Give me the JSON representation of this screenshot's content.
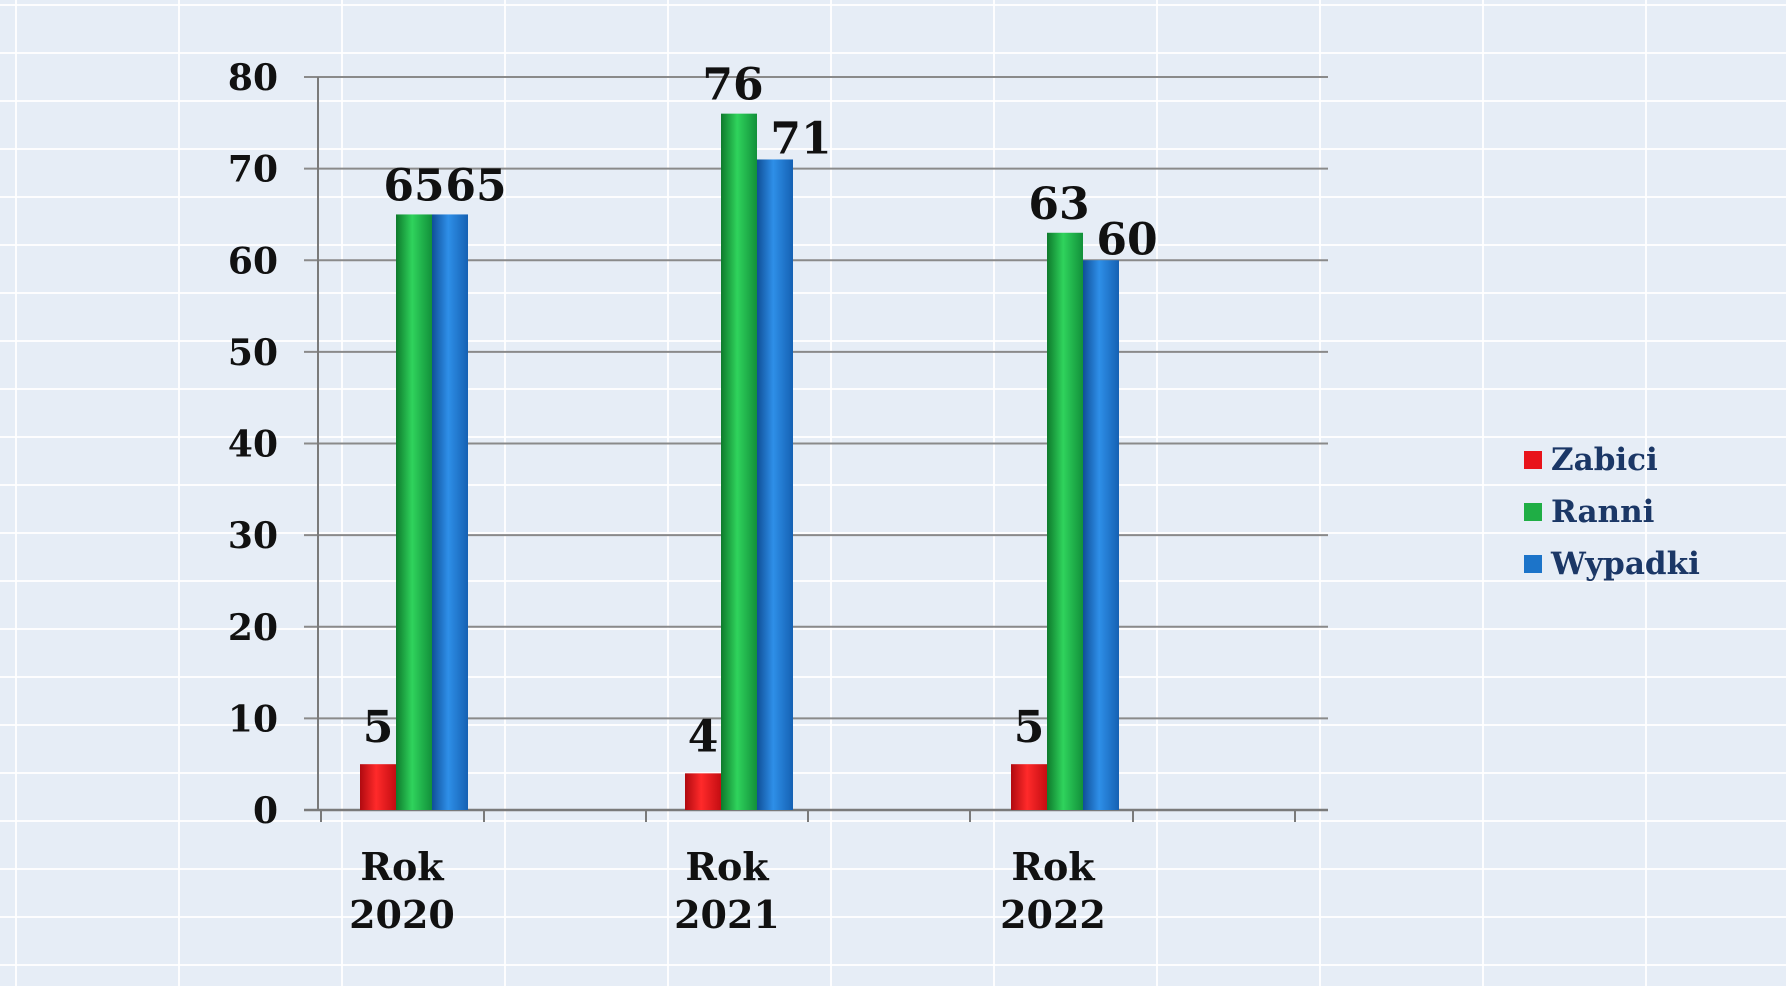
{
  "chart_data": {
    "type": "bar",
    "categories": [
      [
        "Rok",
        "2020"
      ],
      [
        "Rok",
        "2021"
      ],
      [
        "Rok",
        "2022"
      ]
    ],
    "series": [
      {
        "name": "Zabici",
        "values": [
          5,
          4,
          5
        ],
        "color": "#e8141b"
      },
      {
        "name": "Ranni",
        "values": [
          65,
          76,
          63
        ],
        "color": "#1fae45"
      },
      {
        "name": "Wypadki",
        "values": [
          65,
          71,
          60
        ],
        "color": "#1c74c9"
      }
    ],
    "ylim": [
      0,
      80
    ],
    "yticks": [
      0,
      10,
      20,
      30,
      40,
      50,
      60,
      70,
      80
    ],
    "grid": true,
    "legend": "right",
    "title": "",
    "xlabel": "",
    "ylabel": ""
  }
}
